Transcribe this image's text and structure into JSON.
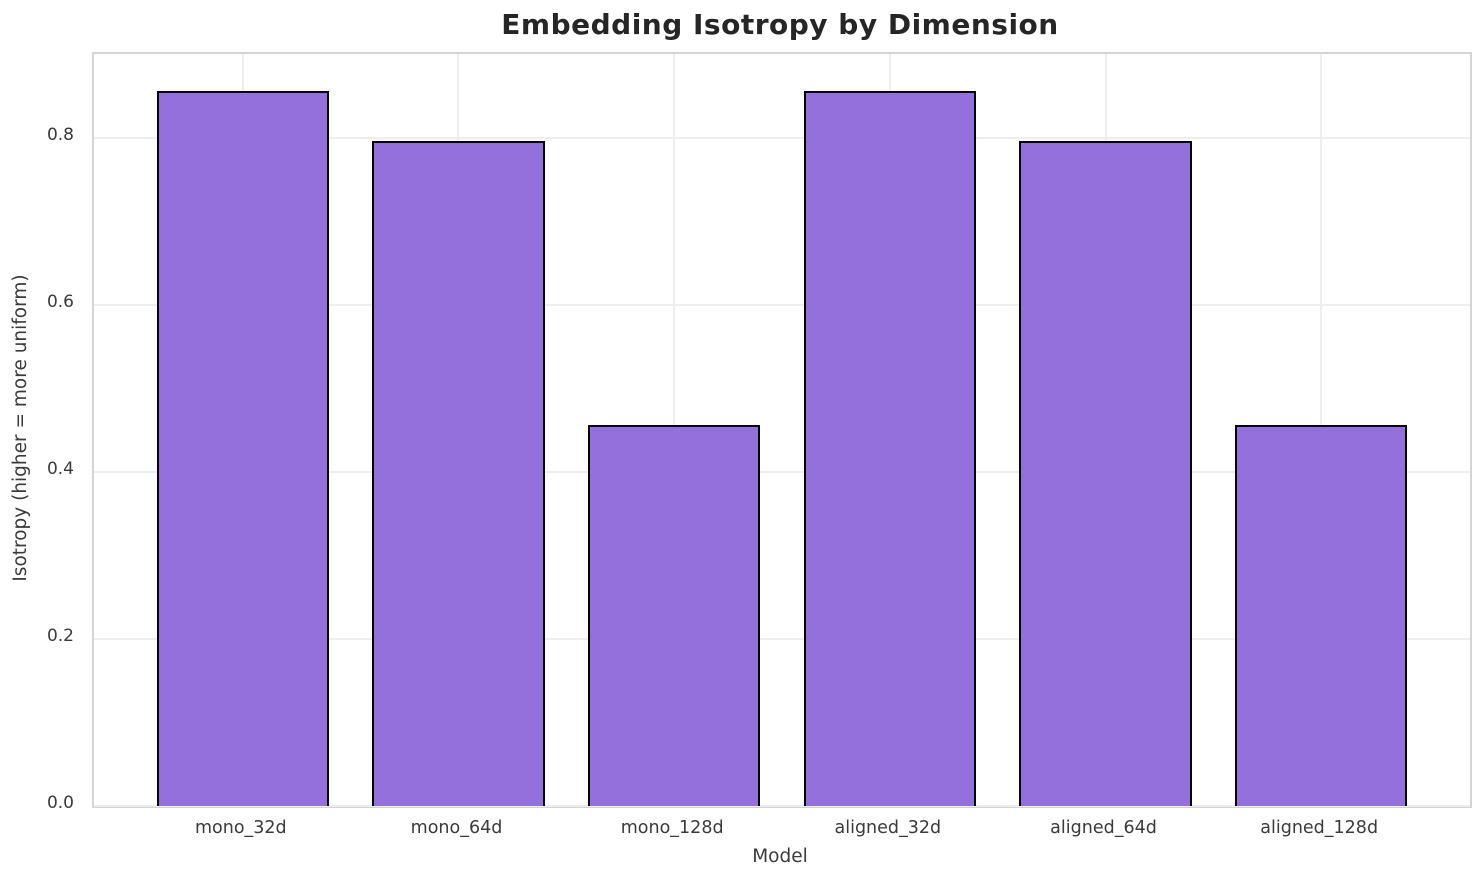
{
  "chart_data": {
    "type": "bar",
    "title": "Embedding Isotropy by Dimension",
    "xlabel": "Model",
    "ylabel": "Isotropy (higher = more uniform)",
    "categories": [
      "mono_32d",
      "mono_64d",
      "mono_128d",
      "aligned_32d",
      "aligned_64d",
      "aligned_128d"
    ],
    "values": [
      0.856,
      0.796,
      0.456,
      0.856,
      0.796,
      0.456
    ],
    "ylim": [
      0,
      0.9
    ],
    "yticks": [
      0.0,
      0.2,
      0.4,
      0.6,
      0.8
    ],
    "ytick_labels": [
      "0.0",
      "0.2",
      "0.4",
      "0.6",
      "0.8"
    ],
    "xlim": [
      -0.69,
      5.69
    ],
    "bar_width": 0.8,
    "grid": true,
    "legend": "none",
    "colors": {
      "bar_fill": "#9370DB",
      "bar_edge": "#000000",
      "grid": "#eeeeee",
      "spine": "#d4d4d4",
      "tick_text": "#3b3b3b",
      "title_text": "#262626"
    }
  }
}
